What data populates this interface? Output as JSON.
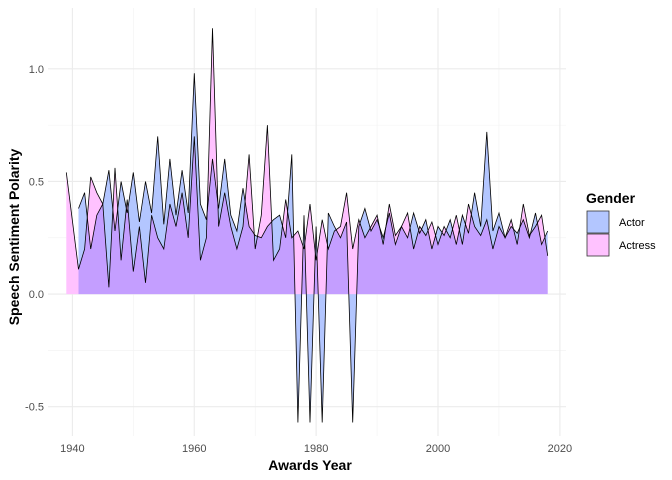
{
  "chart_data": {
    "type": "area",
    "xlabel": "Awards Year",
    "ylabel": "Speech Sentiment Polarity",
    "xlim": [
      1936,
      2021
    ],
    "ylim": [
      -0.63,
      1.27
    ],
    "xticks": [
      1940,
      1960,
      1980,
      2000,
      2020
    ],
    "yticks": [
      -0.5,
      0.0,
      0.5,
      1.0
    ],
    "ytick_labels": [
      "-0.5",
      "0.0",
      "0.5",
      "1.0"
    ],
    "grid": true,
    "legend": {
      "title": "Gender",
      "position": "right"
    },
    "series": [
      {
        "name": "Actor",
        "color": "#b3c6ff",
        "x": [
          1941,
          1942,
          1943,
          1944,
          1945,
          1946,
          1947,
          1948,
          1949,
          1950,
          1951,
          1952,
          1953,
          1954,
          1955,
          1956,
          1957,
          1958,
          1959,
          1960,
          1961,
          1962,
          1963,
          1964,
          1965,
          1966,
          1967,
          1968,
          1969,
          1970,
          1971,
          1972,
          1973,
          1974,
          1975,
          1976,
          1977,
          1978,
          1979,
          1980,
          1981,
          1982,
          1983,
          1984,
          1985,
          1986,
          1987,
          1988,
          1989,
          1990,
          1991,
          1992,
          1993,
          1994,
          1995,
          1996,
          1997,
          1998,
          1999,
          2000,
          2001,
          2002,
          2003,
          2004,
          2005,
          2006,
          2007,
          2008,
          2009,
          2010,
          2011,
          2012,
          2013,
          2014,
          2015,
          2016,
          2017,
          2018
        ],
        "values": [
          0.38,
          0.45,
          0.2,
          0.35,
          0.4,
          0.55,
          0.28,
          0.5,
          0.36,
          0.54,
          0.32,
          0.5,
          0.36,
          0.7,
          0.31,
          0.6,
          0.35,
          0.55,
          0.36,
          0.98,
          0.4,
          0.33,
          0.6,
          0.38,
          0.6,
          0.35,
          0.28,
          0.47,
          0.3,
          0.26,
          0.25,
          0.3,
          0.33,
          0.35,
          0.25,
          0.62,
          -0.57,
          0.35,
          -0.57,
          0.3,
          -0.57,
          0.36,
          0.3,
          0.25,
          0.32,
          -0.57,
          0.3,
          0.38,
          0.28,
          0.33,
          0.25,
          0.36,
          0.22,
          0.3,
          0.25,
          0.36,
          0.27,
          0.33,
          0.2,
          0.3,
          0.26,
          0.33,
          0.22,
          0.35,
          0.27,
          0.45,
          0.3,
          0.72,
          0.28,
          0.36,
          0.25,
          0.3,
          0.27,
          0.33,
          0.25,
          0.36,
          0.22,
          0.28
        ]
      },
      {
        "name": "Actress",
        "color": "#ffc2ff",
        "x": [
          1939,
          1941,
          1942,
          1943,
          1944,
          1945,
          1946,
          1947,
          1948,
          1949,
          1950,
          1951,
          1952,
          1953,
          1954,
          1955,
          1956,
          1957,
          1958,
          1959,
          1960,
          1961,
          1962,
          1963,
          1964,
          1965,
          1966,
          1967,
          1968,
          1969,
          1970,
          1971,
          1972,
          1973,
          1974,
          1975,
          1976,
          1977,
          1978,
          1979,
          1980,
          1981,
          1982,
          1983,
          1984,
          1985,
          1986,
          1987,
          1988,
          1989,
          1990,
          1991,
          1992,
          1993,
          1994,
          1995,
          1996,
          1997,
          1998,
          1999,
          2000,
          2001,
          2002,
          2003,
          2004,
          2005,
          2006,
          2007,
          2008,
          2009,
          2010,
          2011,
          2012,
          2013,
          2014,
          2015,
          2016,
          2017,
          2018
        ],
        "values": [
          0.54,
          0.11,
          0.2,
          0.52,
          0.45,
          0.4,
          0.03,
          0.56,
          0.15,
          0.42,
          0.1,
          0.3,
          0.05,
          0.35,
          0.25,
          0.2,
          0.4,
          0.3,
          0.45,
          0.25,
          0.7,
          0.15,
          0.25,
          1.18,
          0.3,
          0.45,
          0.3,
          0.2,
          0.3,
          0.62,
          0.2,
          0.35,
          0.75,
          0.15,
          0.2,
          0.42,
          0.25,
          0.28,
          0.2,
          0.4,
          0.15,
          0.33,
          0.2,
          0.28,
          0.3,
          0.45,
          0.2,
          0.33,
          0.25,
          0.3,
          0.35,
          0.22,
          0.4,
          0.26,
          0.3,
          0.36,
          0.2,
          0.3,
          0.26,
          0.32,
          0.22,
          0.3,
          0.25,
          0.35,
          0.22,
          0.4,
          0.3,
          0.26,
          0.33,
          0.2,
          0.3,
          0.25,
          0.33,
          0.22,
          0.4,
          0.26,
          0.3,
          0.35,
          0.17
        ]
      }
    ],
    "overlap_color": "#c49eff"
  }
}
